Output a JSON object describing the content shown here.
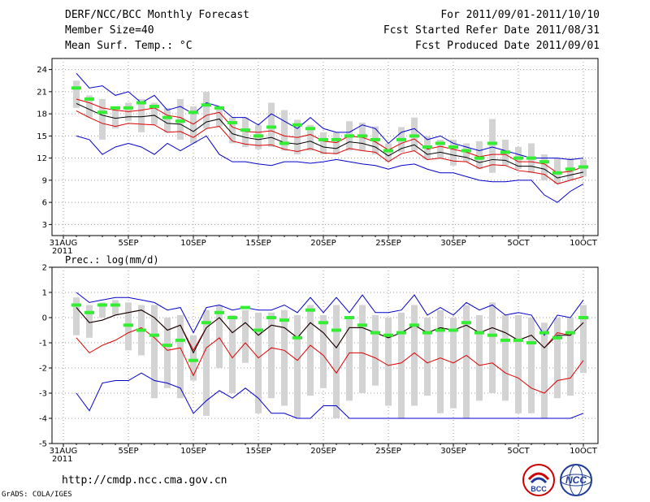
{
  "header": {
    "title": "DERF/NCC/BCC Monthly Forecast",
    "member_size": "Member Size=40",
    "variable": "Mean Surf. Temp.: °C",
    "period": "For 2011/09/01-2011/10/10",
    "start_date": "Fcst Started Refer Date 2011/08/31",
    "produced_date": "Fcst Produced Date 2011/09/01"
  },
  "footer": {
    "url": "http://cmdp.ncc.cma.gov.cn",
    "grads": "GrADS: COLA/IGES",
    "logo_bcc": "BCC",
    "logo_ncc": "NCC"
  },
  "colors": {
    "max_min": "#0000cc",
    "std": "#dd0000",
    "mean": "#000000",
    "box": "#d3d3d3",
    "median": "#33ee33",
    "grid": "#999999"
  },
  "chart_data": [
    {
      "type": "box-ensemble",
      "title": "Mean Surf. Temp.: °C",
      "ylim": [
        1.5,
        25.5
      ],
      "yticks": [
        3,
        6,
        9,
        12,
        15,
        18,
        21,
        24
      ],
      "x_ticks": [
        {
          "day": 0,
          "label": "31AUG",
          "sub": "2011"
        },
        {
          "day": 5,
          "label": "5SEP"
        },
        {
          "day": 10,
          "label": "10SEP"
        },
        {
          "day": 15,
          "label": "15SEP"
        },
        {
          "day": 20,
          "label": "20SEP"
        },
        {
          "day": 25,
          "label": "25SEP"
        },
        {
          "day": 30,
          "label": "30SEP"
        },
        {
          "day": 35,
          "label": "5OCT"
        },
        {
          "day": 40,
          "label": "10OCT"
        }
      ],
      "days": [
        1,
        2,
        3,
        4,
        5,
        6,
        7,
        8,
        9,
        10,
        11,
        12,
        13,
        14,
        15,
        16,
        17,
        18,
        19,
        20,
        21,
        22,
        23,
        24,
        25,
        26,
        27,
        28,
        29,
        30,
        31,
        32,
        33,
        34,
        35,
        36,
        37,
        38,
        39,
        40
      ],
      "max": [
        23.5,
        21.5,
        21.8,
        20.5,
        21,
        19.5,
        20.5,
        18.5,
        19,
        18,
        19.5,
        19,
        17.5,
        17.5,
        16.5,
        18,
        17,
        16,
        17.5,
        16,
        15.5,
        15.5,
        16.5,
        16,
        14,
        15.5,
        16,
        14.5,
        15,
        14,
        13.5,
        13,
        13.5,
        13,
        12.5,
        12,
        12,
        12,
        11.8,
        12
      ],
      "plus_std": [
        20,
        19.5,
        18.8,
        18.5,
        18.3,
        18.5,
        18.8,
        17.8,
        17.5,
        16.6,
        17.8,
        18.2,
        16.2,
        15.6,
        15.5,
        15.7,
        15,
        14.8,
        15.2,
        14.3,
        14.1,
        15,
        14.8,
        14.2,
        13.1,
        14,
        14.6,
        13.2,
        13.6,
        13.2,
        12.8,
        12.2,
        12.5,
        12.5,
        11.5,
        11.5,
        11.2,
        10,
        10.2,
        10.8
      ],
      "mean": [
        19.4,
        18.6,
        17.8,
        17.4,
        17.6,
        17.6,
        17.8,
        16.7,
        16.6,
        15.6,
        16.9,
        17.3,
        15.3,
        14.8,
        14.5,
        14.8,
        14.1,
        13.9,
        14.3,
        13.5,
        13.3,
        14.2,
        14,
        13.5,
        12.3,
        13.3,
        13.8,
        12.5,
        12.8,
        12.4,
        12.1,
        11.4,
        11.8,
        11.7,
        10.9,
        10.9,
        10.5,
        9.3,
        9.7,
        10.1
      ],
      "minus_std": [
        18.4,
        17.5,
        16.7,
        16.3,
        16.7,
        16.6,
        16.5,
        15.5,
        15.6,
        14.8,
        16,
        16.3,
        14.3,
        13.9,
        13.7,
        13.8,
        13.2,
        12.9,
        13.3,
        12.7,
        12.6,
        13.3,
        13,
        12.8,
        11.5,
        12.6,
        13,
        11.8,
        12,
        11.6,
        11.5,
        10.6,
        11.1,
        11,
        10.3,
        10.1,
        9.8,
        8.5,
        9,
        9.5
      ],
      "min": [
        15,
        14.5,
        12.5,
        13.5,
        14,
        13.5,
        12.5,
        14,
        13,
        14,
        15,
        12.5,
        11.5,
        11.5,
        11.2,
        11,
        11.5,
        11.5,
        11.3,
        11.5,
        11.8,
        11.5,
        11.2,
        11,
        10.5,
        11,
        11.2,
        10.5,
        10,
        10,
        9.5,
        9,
        8.8,
        8.8,
        9,
        9,
        7,
        6,
        7.5,
        8.5
      ],
      "box_top": [
        22.5,
        20.5,
        20,
        18.5,
        19.5,
        20,
        19.5,
        18.8,
        20,
        19,
        21,
        19,
        17.5,
        17.5,
        16.5,
        19.5,
        18.5,
        17.2,
        16.5,
        15.5,
        15.5,
        17,
        16.8,
        16.3,
        14,
        16.2,
        17.5,
        15,
        14.5,
        14.5,
        14,
        14.3,
        17.3,
        14.5,
        13.5,
        14,
        12.5,
        12,
        12,
        11.8
      ],
      "box_bot": [
        18.8,
        17.5,
        14.5,
        16,
        17,
        15.5,
        16.5,
        15.5,
        14.5,
        14,
        16,
        16.3,
        14,
        13.5,
        13.2,
        13.5,
        13,
        12.5,
        13,
        12.5,
        12.5,
        13,
        13,
        12.5,
        11.5,
        12.8,
        13,
        11.8,
        12,
        11,
        11.5,
        10.5,
        10,
        11,
        10.5,
        10,
        9,
        8.5,
        9,
        9.5
      ],
      "median": [
        21.5,
        20,
        18.2,
        18.8,
        18.8,
        19.5,
        19,
        17.5,
        17,
        18.2,
        19.2,
        18.8,
        16.8,
        15.8,
        15,
        16.2,
        14,
        16.5,
        16,
        14.5,
        14.5,
        15,
        15,
        14.5,
        13,
        14.5,
        15,
        13.5,
        14,
        13.5,
        13,
        12,
        14,
        12.8,
        12,
        12,
        11.5,
        10,
        10.5,
        10.8
      ]
    },
    {
      "type": "box-ensemble",
      "title": "Prec.: log(mm/d)",
      "ylim": [
        -5,
        2
      ],
      "yticks": [
        -5,
        -4,
        -3,
        -2,
        -1,
        0,
        1,
        2
      ],
      "x_ticks": [
        {
          "day": 0,
          "label": "31AUG",
          "sub": "2011"
        },
        {
          "day": 5,
          "label": "5SEP"
        },
        {
          "day": 10,
          "label": "10SEP"
        },
        {
          "day": 15,
          "label": "15SEP"
        },
        {
          "day": 20,
          "label": "20SEP"
        },
        {
          "day": 25,
          "label": "25SEP"
        },
        {
          "day": 30,
          "label": "30SEP"
        },
        {
          "day": 35,
          "label": "5OCT"
        },
        {
          "day": 40,
          "label": "10OCT"
        }
      ],
      "days": [
        1,
        2,
        3,
        4,
        5,
        6,
        7,
        8,
        9,
        10,
        11,
        12,
        13,
        14,
        15,
        16,
        17,
        18,
        19,
        20,
        21,
        22,
        23,
        24,
        25,
        26,
        27,
        28,
        29,
        30,
        31,
        32,
        33,
        34,
        35,
        36,
        37,
        38,
        39,
        40
      ],
      "max": [
        1,
        0.6,
        0.7,
        0.8,
        0.8,
        0.7,
        0.6,
        0.3,
        0.4,
        -0.6,
        0.4,
        0.5,
        0.3,
        0.4,
        0.3,
        0.3,
        0.5,
        0.2,
        0.8,
        0.2,
        0.8,
        0.2,
        0.9,
        0.2,
        0.2,
        0.3,
        0.9,
        0.1,
        0.4,
        0.1,
        0.6,
        0.3,
        0.5,
        0.1,
        0.2,
        0.1,
        -0.7,
        0.1,
        0,
        0.7
      ],
      "plus_std": [
        0.4,
        -0.2,
        -0.1,
        0.1,
        0.2,
        0.3,
        0,
        -0.5,
        -0.3,
        -1.3,
        -0.4,
        0,
        -0.6,
        -0.2,
        -0.7,
        -0.3,
        -0.4,
        -0.8,
        -0.2,
        -0.6,
        -1.2,
        -0.4,
        -0.4,
        -0.6,
        -0.8,
        -0.6,
        -0.3,
        -0.6,
        -0.4,
        -0.5,
        -0.3,
        -0.6,
        -0.4,
        -0.6,
        -0.9,
        -0.7,
        -1.2,
        -0.6,
        -0.7,
        -0.2
      ],
      "mean": [
        0.4,
        -0.2,
        -0.1,
        0.1,
        0.2,
        0.3,
        0,
        -0.5,
        -0.3,
        -1.4,
        -0.4,
        0,
        -0.6,
        -0.2,
        -0.7,
        -0.3,
        -0.4,
        -0.8,
        -0.2,
        -0.6,
        -1.2,
        -0.4,
        -0.4,
        -0.6,
        -0.8,
        -0.6,
        -0.3,
        -0.6,
        -0.4,
        -0.5,
        -0.3,
        -0.6,
        -0.4,
        -0.6,
        -0.9,
        -0.7,
        -1.2,
        -0.7,
        -0.7,
        -0.2
      ],
      "minus_std": [
        -0.8,
        -1.4,
        -1.1,
        -0.9,
        -0.6,
        -0.4,
        -0.8,
        -1.3,
        -1.2,
        -2.3,
        -1.2,
        -0.8,
        -1.6,
        -1,
        -1.6,
        -1.2,
        -1.3,
        -1.7,
        -1.1,
        -1.5,
        -2.2,
        -1.4,
        -1.4,
        -1.6,
        -1.9,
        -1.8,
        -1.4,
        -1.8,
        -1.6,
        -1.8,
        -1.5,
        -1.9,
        -1.8,
        -2.2,
        -2.4,
        -2.8,
        -3,
        -2.5,
        -2.4,
        -1.7
      ],
      "min": [
        -3,
        -3.7,
        -2.6,
        -2.5,
        -2.5,
        -2.2,
        -2.5,
        -2.6,
        -2.8,
        -3.8,
        -3.3,
        -2.9,
        -3.2,
        -2.8,
        -3.2,
        -3.8,
        -3.8,
        -4,
        -4,
        -3.5,
        -3.5,
        -4,
        -4,
        -4,
        -4,
        -4,
        -4,
        -4,
        -4,
        -4,
        -4,
        -4,
        -4,
        -4,
        -4,
        -4,
        -4,
        -4,
        -4,
        -3.8
      ],
      "box_top": [
        0.8,
        0.5,
        0.6,
        0.7,
        0.6,
        0.5,
        0.5,
        0,
        0.1,
        -0.7,
        0.3,
        0.5,
        0.1,
        0.3,
        0.2,
        0.2,
        0.3,
        0.1,
        0.5,
        0.1,
        0.5,
        0,
        0.5,
        0.1,
        0,
        0.2,
        0.5,
        0,
        0.3,
        0,
        0.5,
        0.1,
        0.6,
        0.1,
        0.1,
        0,
        -0.2,
        0,
        0,
        0.5
      ],
      "box_bot": [
        -0.7,
        -0.8,
        0,
        0.1,
        -1.3,
        -1.5,
        -3.2,
        -2.8,
        -3.2,
        -2.5,
        -3.9,
        -2,
        -3,
        -1.8,
        -3.8,
        -3.2,
        -3.5,
        -4,
        -3.1,
        -2.8,
        -4,
        -3.3,
        -3,
        -2.7,
        -3.5,
        -4,
        -3.5,
        -3.1,
        -3.8,
        -3.6,
        -4,
        -3.3,
        -3,
        -3.3,
        -3.8,
        -3.8,
        -4,
        -3.2,
        -3.1,
        -2.2
      ],
      "median": [
        0.5,
        0.2,
        0.5,
        0.5,
        -0.3,
        -0.5,
        -0.7,
        -1.1,
        -0.9,
        -1.7,
        -0.2,
        0.2,
        0,
        0.4,
        -0.5,
        0,
        -0.1,
        -0.8,
        0.3,
        -0.2,
        -0.5,
        0,
        -0.3,
        -0.6,
        -0.7,
        -0.6,
        -0.3,
        -0.6,
        -0.5,
        -0.5,
        -0.2,
        -0.6,
        -0.7,
        -0.9,
        -0.9,
        -1,
        -0.6,
        -0.8,
        -0.6,
        0
      ]
    }
  ]
}
